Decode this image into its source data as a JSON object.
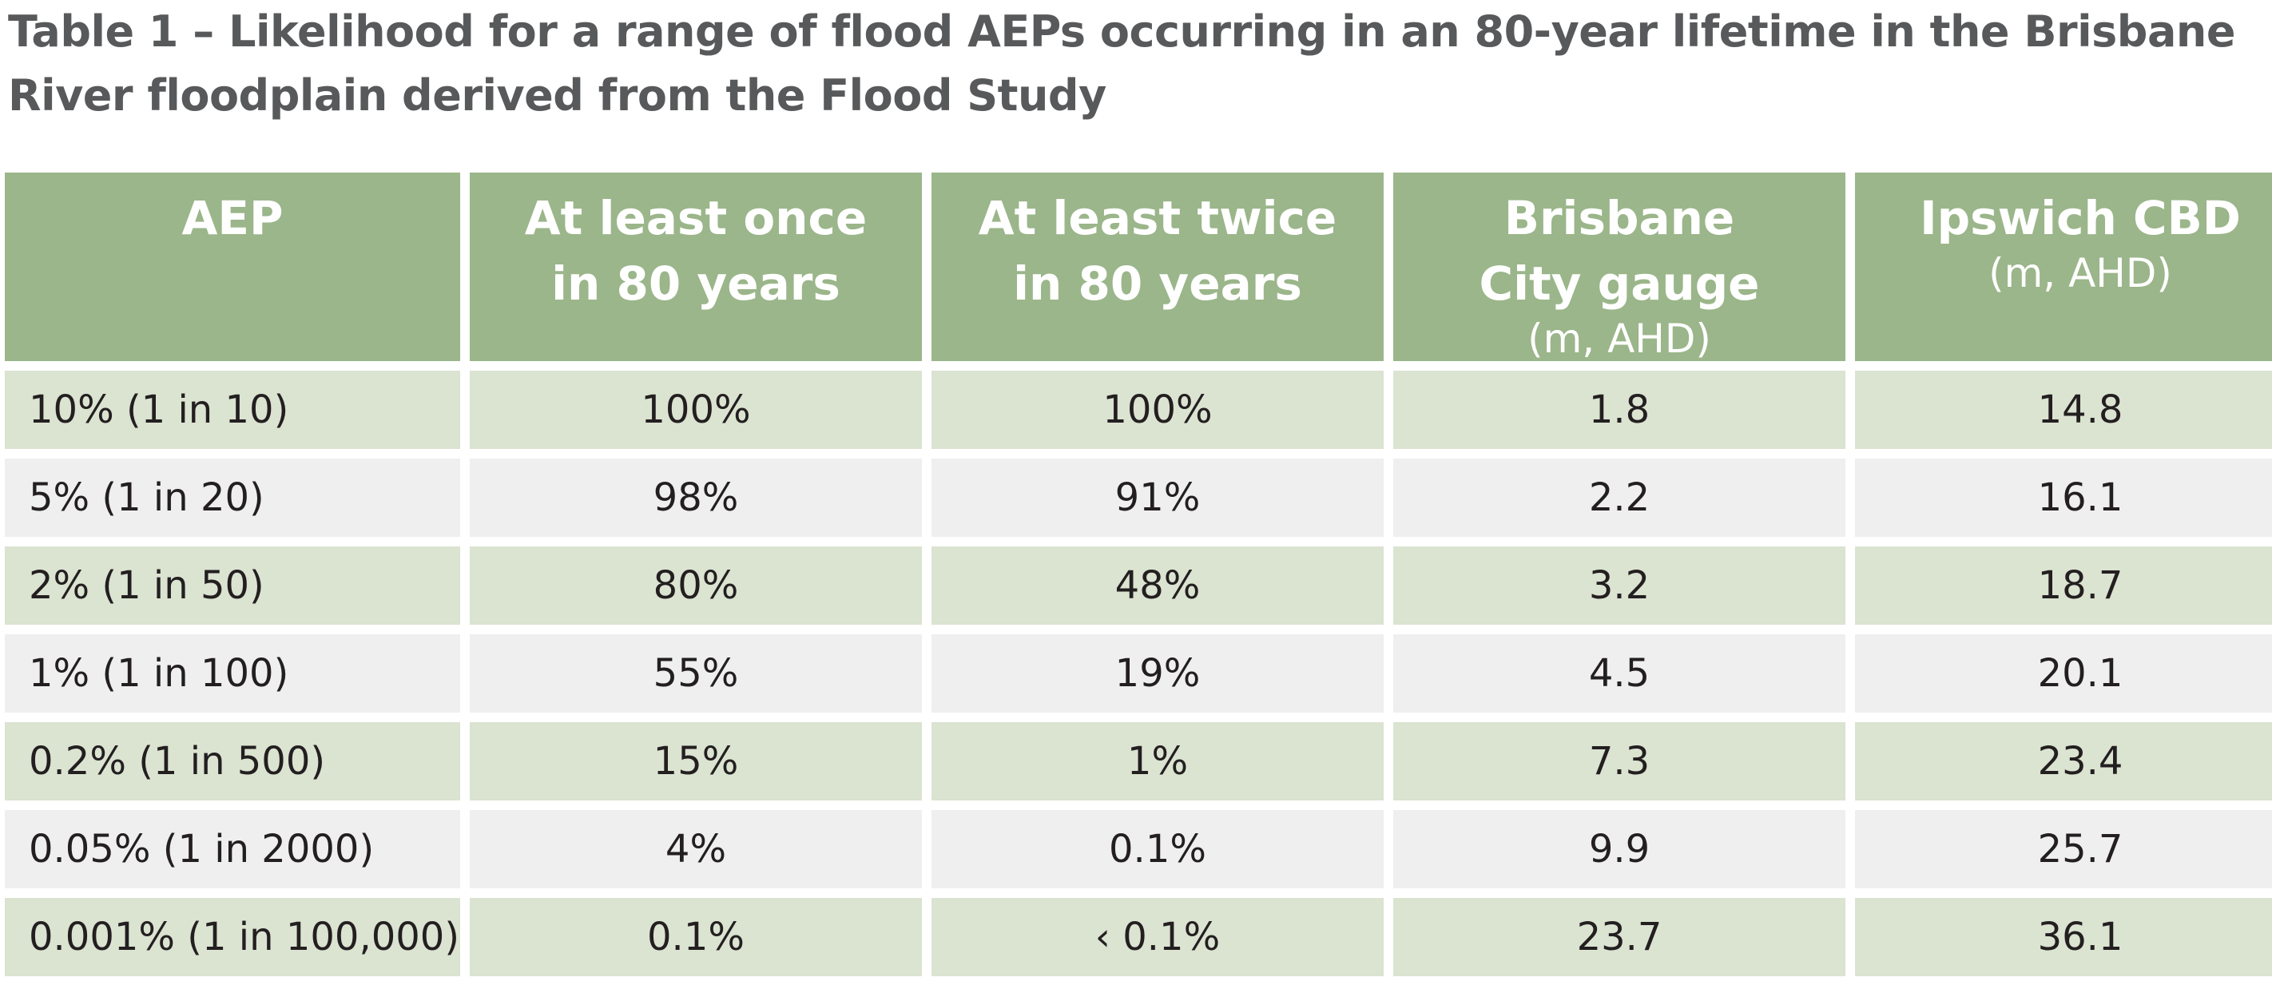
{
  "caption": "Table 1 – Likelihood for a range of flood AEPs occurring in an 80-year lifetime in the Brisbane River floodplain derived from the Flood Study",
  "columns": [
    {
      "label": "AEP",
      "unit": ""
    },
    {
      "label": "At least once in 80 years",
      "unit": ""
    },
    {
      "label": "At least twice in 80 years",
      "unit": ""
    },
    {
      "label": "Brisbane City gauge",
      "unit": "(m, AHD)"
    },
    {
      "label": "Ipswich CBD",
      "unit": "(m, AHD)"
    }
  ],
  "rows": [
    [
      "10% (1 in 10)",
      "100%",
      "100%",
      "1.8",
      "14.8"
    ],
    [
      "5% (1 in 20)",
      "98%",
      "91%",
      "2.2",
      "16.1"
    ],
    [
      "2% (1 in 50)",
      "80%",
      "48%",
      "3.2",
      "18.7"
    ],
    [
      "1% (1 in 100)",
      "55%",
      "19%",
      "4.5",
      "20.1"
    ],
    [
      "0.2% (1 in 500)",
      "15%",
      "1%",
      "7.3",
      "23.4"
    ],
    [
      "0.05% (1 in 2000)",
      "4%",
      "0.1%",
      "9.9",
      "25.7"
    ],
    [
      "0.001% (1 in 100,000)",
      "0.1%",
      "‹ 0.1%",
      "23.7",
      "36.1"
    ]
  ],
  "colors": {
    "header_bg": "#9bb68a",
    "row_shade": "#dbe3d1",
    "row_plain": "#efefef",
    "caption_text": "#58595b"
  }
}
